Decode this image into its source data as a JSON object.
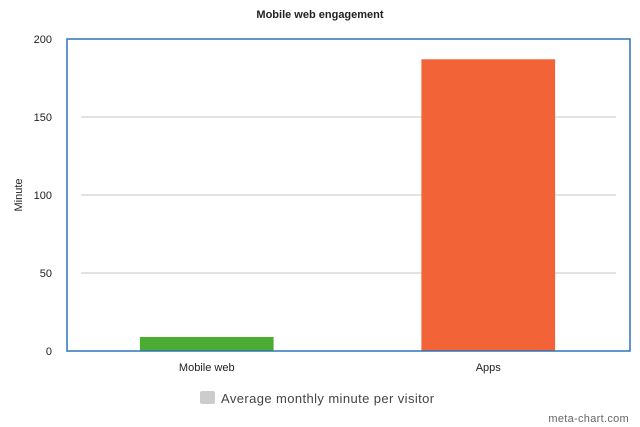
{
  "chart_data": {
    "type": "bar",
    "title": "Mobile web engagement",
    "xlabel": "",
    "ylabel": "Minute",
    "categories": [
      "Mobile web",
      "Apps"
    ],
    "series": [
      {
        "name": "Average monthly minute per visitor",
        "values": [
          9,
          187
        ],
        "colors": [
          "#4bab33",
          "#f26337"
        ]
      }
    ],
    "ylim": [
      0,
      200
    ],
    "yticks": [
      0,
      50,
      100,
      150,
      200
    ],
    "grid": true,
    "legend": "bottom",
    "frame_color": "#2f73b8",
    "grid_color": "#d9d9d9",
    "legend_swatch_color": "#cccccc"
  },
  "credit": "meta-chart.com"
}
